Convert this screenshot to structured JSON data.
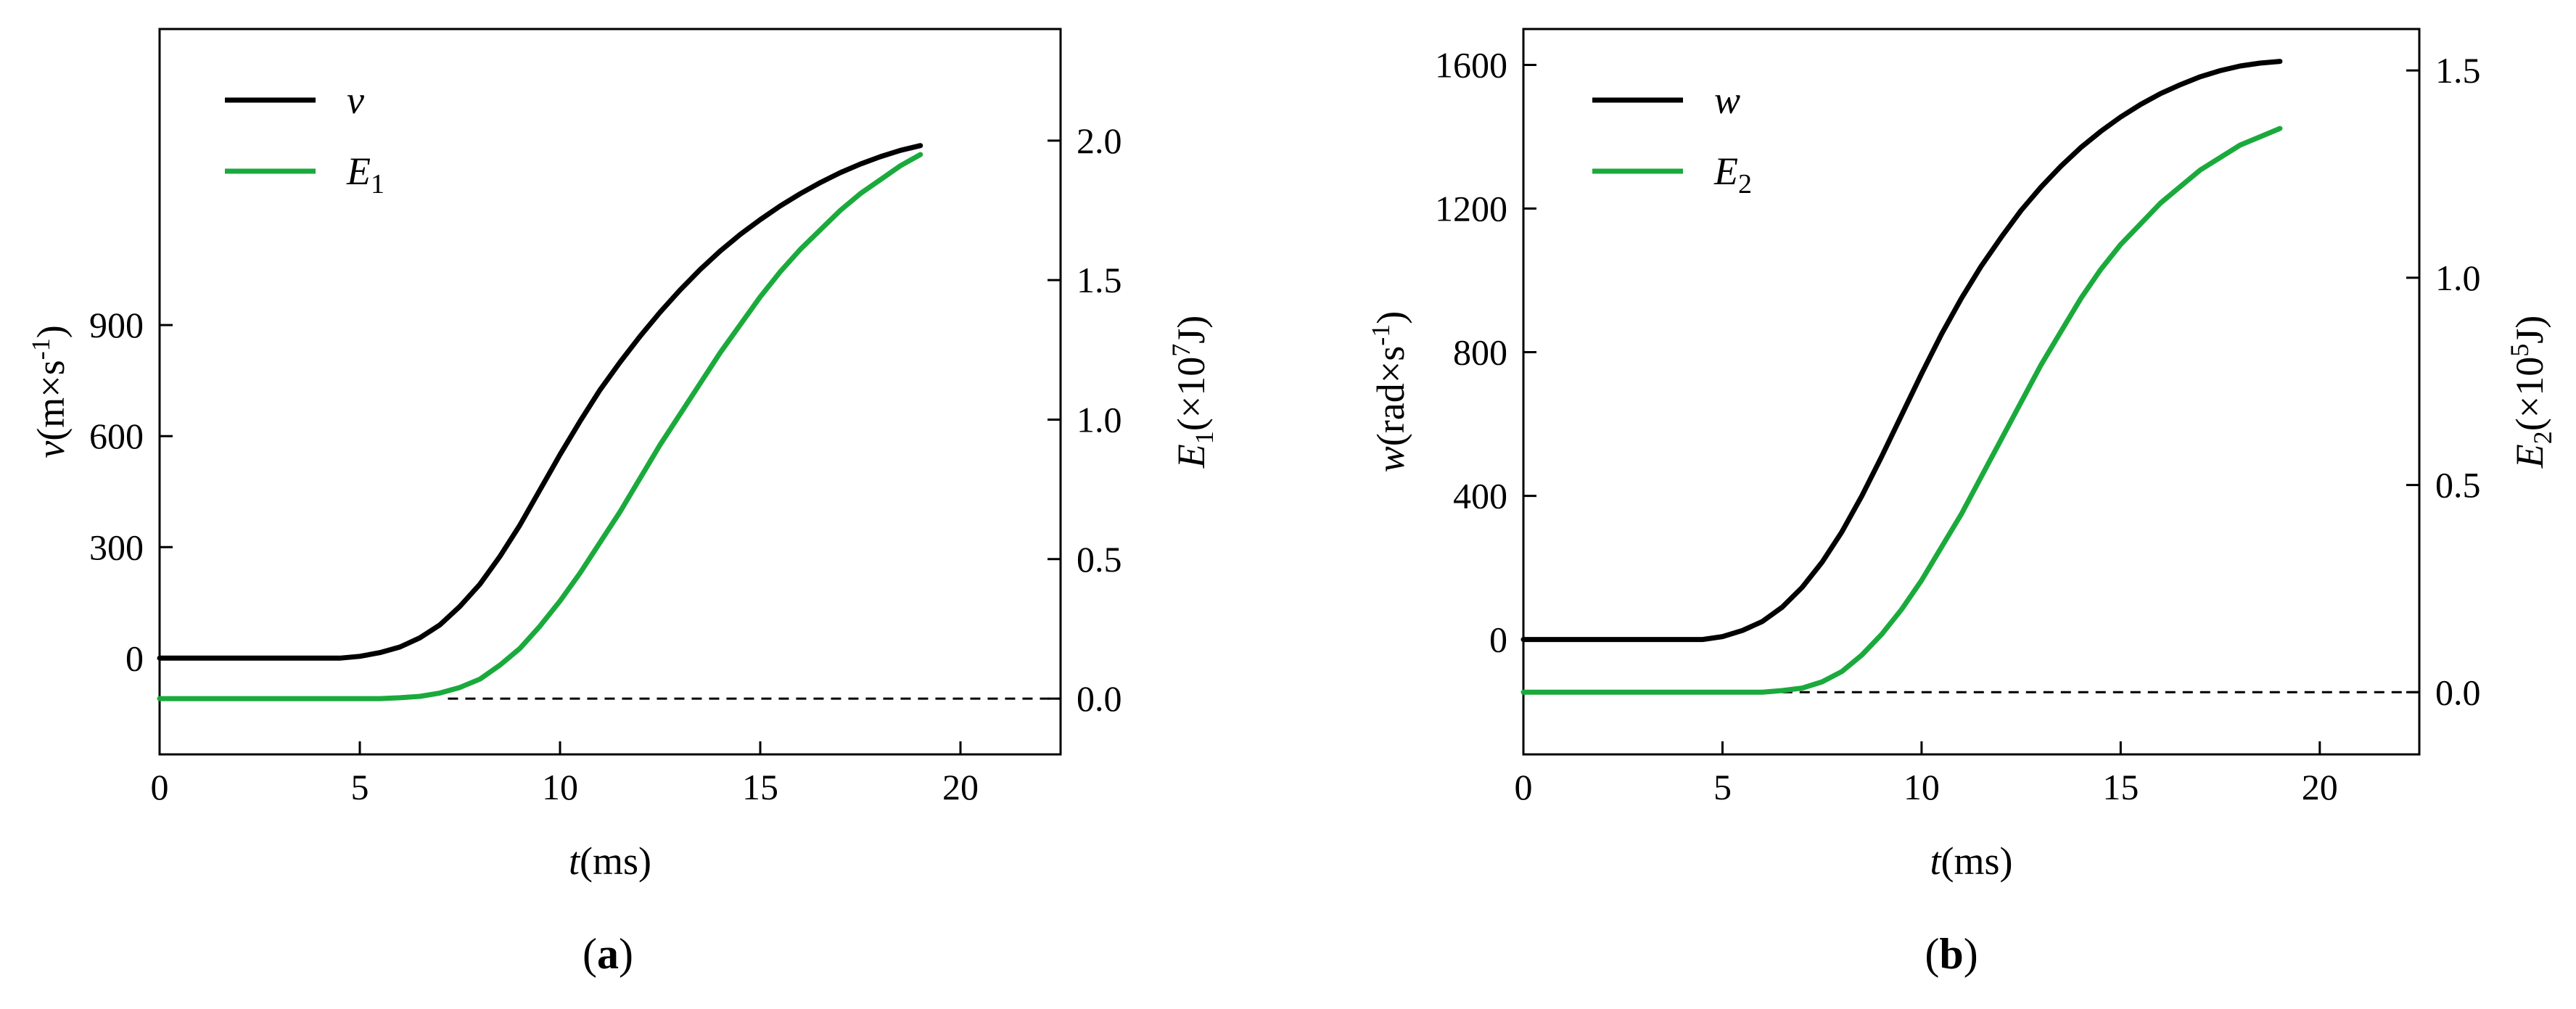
{
  "colors": {
    "black_series": "#000000",
    "green_series": "#1aaa3c",
    "reference_line": "#000000"
  },
  "chart_data": [
    {
      "type": "line",
      "panel_label": {
        "open": "(",
        "letter": "a",
        "close": ")"
      },
      "xlabel": {
        "var": "t",
        "unit": "(ms)"
      },
      "ylabel_left": {
        "var": "v",
        "unit": "(m×s",
        "sup": "-1",
        "close": ")"
      },
      "ylabel_right": {
        "var": "E",
        "sub": "1",
        "unit": "(×10",
        "sup": "7",
        "close": "J)"
      },
      "xlim": [
        0,
        22.5
      ],
      "ylim_left": [
        -260,
        1700
      ],
      "ylim_right": [
        -0.2,
        2.4
      ],
      "xticks": [
        0,
        5,
        10,
        15,
        20
      ],
      "yticks_left": [
        0,
        300,
        600,
        900
      ],
      "yticks_right": [
        0.0,
        0.5,
        1.0,
        1.5,
        2.0
      ],
      "series": [
        {
          "name": "v",
          "axis": "left",
          "color": "#000000",
          "x": [
            0,
            4.5,
            5,
            5.5,
            6,
            6.5,
            7,
            7.5,
            8,
            8.5,
            9,
            9.5,
            10,
            10.5,
            11,
            11.5,
            12,
            12.5,
            13,
            13.5,
            14,
            14.5,
            15,
            15.5,
            16,
            16.5,
            17,
            17.5,
            18,
            18.5,
            19
          ],
          "y": [
            0,
            0,
            5,
            15,
            30,
            55,
            90,
            140,
            200,
            275,
            360,
            455,
            550,
            640,
            725,
            800,
            870,
            935,
            995,
            1050,
            1100,
            1145,
            1185,
            1222,
            1255,
            1285,
            1312,
            1335,
            1355,
            1372,
            1385
          ]
        },
        {
          "name": "E1",
          "label_main": "E",
          "label_sub": "1",
          "axis": "right",
          "color": "#1aaa3c",
          "x": [
            0,
            5.5,
            6,
            6.5,
            7,
            7.5,
            8,
            8.5,
            9,
            9.5,
            10,
            10.5,
            11,
            11.5,
            12,
            12.5,
            13,
            13.5,
            14,
            14.5,
            15,
            15.5,
            16,
            16.5,
            17,
            17.5,
            18,
            18.5,
            19
          ],
          "y": [
            0,
            0,
            0.003,
            0.008,
            0.02,
            0.04,
            0.07,
            0.12,
            0.18,
            0.26,
            0.35,
            0.45,
            0.56,
            0.67,
            0.79,
            0.91,
            1.02,
            1.13,
            1.24,
            1.34,
            1.44,
            1.53,
            1.61,
            1.68,
            1.75,
            1.81,
            1.86,
            1.91,
            1.95
          ]
        }
      ],
      "reference_line": {
        "axis": "right",
        "y": 0,
        "x": [
          7.2,
          22.5
        ],
        "style": "dashed"
      },
      "legend": "top-left"
    },
    {
      "type": "line",
      "panel_label": {
        "open": "(",
        "letter": "b",
        "close": ")"
      },
      "xlabel": {
        "var": "t",
        "unit": "(ms)"
      },
      "ylabel_left": {
        "var": "w",
        "unit": "(rad×s",
        "sup": "-1",
        "close": ")"
      },
      "ylabel_right": {
        "var": "E",
        "sub": "2",
        "unit": "(×10",
        "sup": "5",
        "close": "J)"
      },
      "xlim": [
        0,
        22.5
      ],
      "ylim_left": [
        -320,
        1700
      ],
      "ylim_right": [
        -0.15,
        1.6
      ],
      "xticks": [
        0,
        5,
        10,
        15,
        20
      ],
      "yticks_left": [
        0,
        400,
        800,
        1200,
        1600
      ],
      "yticks_right": [
        0.0,
        0.5,
        1.0,
        1.5
      ],
      "series": [
        {
          "name": "w",
          "axis": "left",
          "color": "#000000",
          "x": [
            0,
            4.5,
            5,
            5.5,
            6,
            6.5,
            7,
            7.5,
            8,
            8.5,
            9,
            9.5,
            10,
            10.5,
            11,
            11.5,
            12,
            12.5,
            13,
            13.5,
            14,
            14.5,
            15,
            15.5,
            16,
            16.5,
            17,
            17.5,
            18,
            18.5,
            19
          ],
          "y": [
            0,
            0,
            8,
            25,
            50,
            90,
            145,
            215,
            300,
            400,
            510,
            625,
            740,
            850,
            950,
            1040,
            1120,
            1195,
            1260,
            1318,
            1370,
            1415,
            1455,
            1490,
            1520,
            1545,
            1567,
            1584,
            1597,
            1605,
            1610
          ]
        },
        {
          "name": "E2",
          "label_main": "E",
          "label_sub": "2",
          "axis": "right",
          "color": "#1aaa3c",
          "x": [
            0,
            6,
            6.5,
            7,
            7.5,
            8,
            8.5,
            9,
            9.5,
            10,
            10.5,
            11,
            11.5,
            12,
            12.5,
            13,
            13.5,
            14,
            14.5,
            15,
            15.5,
            16,
            16.5,
            17,
            17.5,
            18,
            18.5,
            19
          ],
          "y": [
            0,
            0,
            0.004,
            0.01,
            0.025,
            0.05,
            0.09,
            0.14,
            0.2,
            0.27,
            0.35,
            0.43,
            0.52,
            0.61,
            0.7,
            0.79,
            0.87,
            0.95,
            1.02,
            1.08,
            1.13,
            1.18,
            1.22,
            1.26,
            1.29,
            1.32,
            1.34,
            1.36
          ]
        }
      ],
      "reference_line": {
        "axis": "right",
        "y": 0,
        "x": [
          6.5,
          22.5
        ],
        "style": "dashed"
      },
      "legend": "top-left"
    }
  ]
}
